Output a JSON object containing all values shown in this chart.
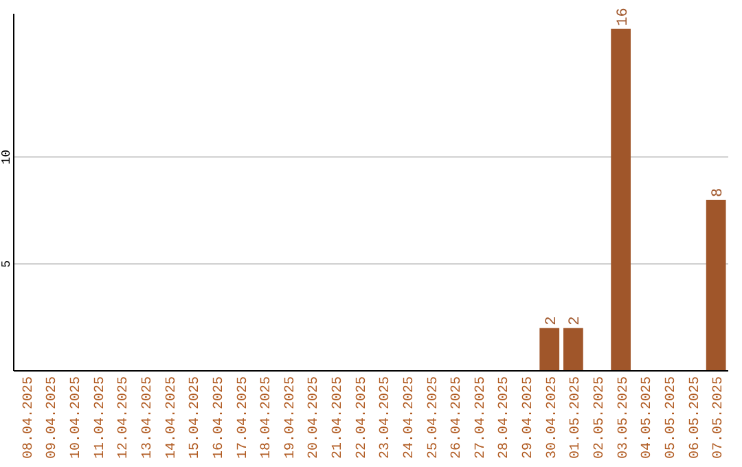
{
  "chart_data": {
    "type": "bar",
    "categories": [
      "08.04.2025",
      "09.04.2025",
      "10.04.2025",
      "11.04.2025",
      "12.04.2025",
      "13.04.2025",
      "14.04.2025",
      "15.04.2025",
      "16.04.2025",
      "17.04.2025",
      "18.04.2025",
      "19.04.2025",
      "20.04.2025",
      "21.04.2025",
      "22.04.2025",
      "23.04.2025",
      "24.04.2025",
      "25.04.2025",
      "26.04.2025",
      "27.04.2025",
      "28.04.2025",
      "29.04.2025",
      "30.04.2025",
      "01.05.2025",
      "02.05.2025",
      "03.05.2025",
      "04.05.2025",
      "05.05.2025",
      "06.05.2025",
      "07.05.2025"
    ],
    "values": [
      0,
      0,
      0,
      0,
      0,
      0,
      0,
      0,
      0,
      0,
      0,
      0,
      0,
      0,
      0,
      0,
      0,
      0,
      0,
      0,
      0,
      0,
      2,
      2,
      0,
      16,
      0,
      0,
      0,
      8
    ],
    "value_labels": [
      null,
      null,
      null,
      null,
      null,
      null,
      null,
      null,
      null,
      null,
      null,
      null,
      null,
      null,
      null,
      null,
      null,
      null,
      null,
      null,
      null,
      null,
      "2",
      "2",
      null,
      "16",
      null,
      null,
      null,
      "8"
    ],
    "color": "#a0562a",
    "ylim": [
      0,
      16.7
    ],
    "yticks": [
      5,
      10
    ],
    "grid": "y"
  }
}
